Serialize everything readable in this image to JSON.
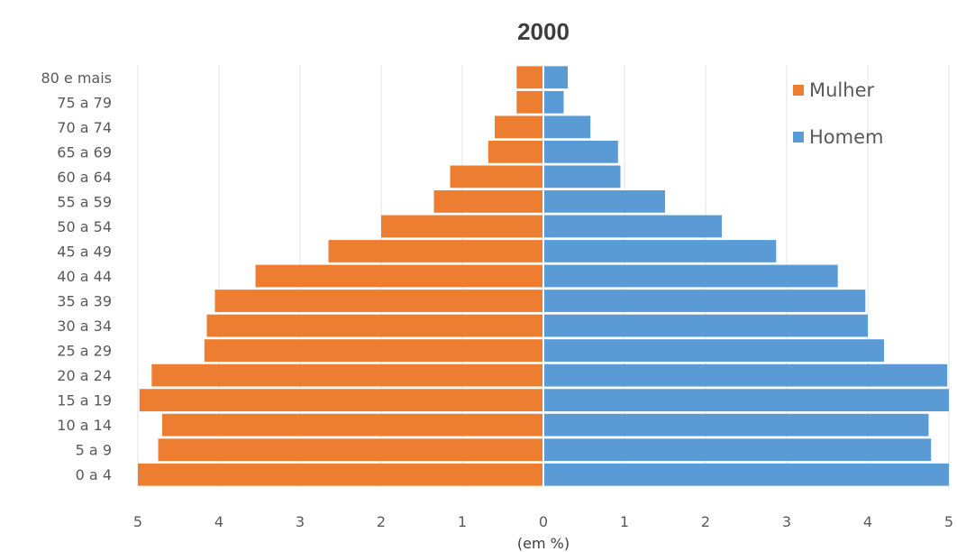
{
  "chart_data": {
    "type": "bar",
    "orientation": "horizontal",
    "title": "2000",
    "xlabel": "(em %)",
    "ylabel": "",
    "categories": [
      "0 a 4",
      "5 a 9",
      "10 a 14",
      "15 a 19",
      "20 a 24",
      "25 a 29",
      "30 a 34",
      "35 a 39",
      "40 a 44",
      "45 a 49",
      "50 a 54",
      "55 a 59",
      "60 a 64",
      "65 a 69",
      "70 a 74",
      "75 a 79",
      "80 e mais"
    ],
    "series": [
      {
        "name": "Mulher",
        "color": "#ed7d31",
        "side": "left",
        "values": [
          5.0,
          4.75,
          4.7,
          4.98,
          4.83,
          4.18,
          4.15,
          4.05,
          3.55,
          2.65,
          2.0,
          1.35,
          1.15,
          0.68,
          0.6,
          0.33,
          0.33
        ]
      },
      {
        "name": "Homem",
        "color": "#5b9bd5",
        "side": "right",
        "values": [
          5.0,
          4.78,
          4.75,
          5.0,
          4.98,
          4.2,
          4.0,
          3.97,
          3.63,
          2.87,
          2.2,
          1.5,
          0.95,
          0.92,
          0.58,
          0.25,
          0.3
        ]
      }
    ],
    "xticks": [
      "5",
      "4",
      "3",
      "2",
      "1",
      "0",
      "1",
      "2",
      "3",
      "4",
      "5"
    ],
    "xlim": [
      -5,
      5
    ],
    "grid": true,
    "legend": "top-right"
  }
}
